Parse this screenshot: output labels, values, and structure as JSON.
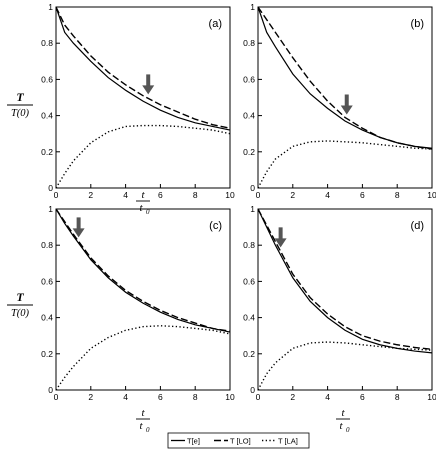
{
  "chart_data": [
    {
      "type": "line",
      "panel_label": "(a)",
      "xlim": [
        0,
        10
      ],
      "ylim": [
        0,
        1
      ],
      "xticks": [
        "0",
        "2",
        "4",
        "6",
        "8",
        "10"
      ],
      "yticks": [
        "0",
        "0.2",
        "0.4",
        "0.6",
        "0.8",
        "1"
      ],
      "arrow_x": 5.3,
      "series": [
        {
          "name": "T[e]",
          "style": "solid",
          "x": [
            0,
            0.5,
            1,
            2,
            3,
            4,
            5,
            6,
            7,
            8,
            9,
            10
          ],
          "y": [
            1.0,
            0.86,
            0.8,
            0.7,
            0.61,
            0.54,
            0.48,
            0.43,
            0.39,
            0.36,
            0.34,
            0.32
          ]
        },
        {
          "name": "T [LO]",
          "style": "dashed",
          "x": [
            0,
            0.5,
            1,
            2,
            3,
            4,
            5,
            6,
            7,
            8,
            9,
            10
          ],
          "y": [
            1.0,
            0.9,
            0.84,
            0.73,
            0.64,
            0.57,
            0.51,
            0.46,
            0.42,
            0.38,
            0.35,
            0.33
          ]
        },
        {
          "name": "T [LA]",
          "style": "dotted",
          "x": [
            0,
            0.5,
            1,
            2,
            3,
            4,
            5,
            6,
            7,
            8,
            9,
            10
          ],
          "y": [
            0.0,
            0.08,
            0.15,
            0.25,
            0.31,
            0.34,
            0.345,
            0.345,
            0.34,
            0.33,
            0.32,
            0.3
          ]
        }
      ]
    },
    {
      "type": "line",
      "panel_label": "(b)",
      "xlim": [
        0,
        10
      ],
      "ylim": [
        0,
        1
      ],
      "xticks": [
        "0",
        "2",
        "4",
        "6",
        "8",
        "10"
      ],
      "yticks": [
        "0",
        "0.2",
        "0.4",
        "0.6",
        "0.8",
        "1"
      ],
      "arrow_x": 5.1,
      "series": [
        {
          "name": "T[e]",
          "style": "solid",
          "x": [
            0,
            0.5,
            1,
            2,
            3,
            4,
            5,
            6,
            7,
            8,
            9,
            10
          ],
          "y": [
            1.0,
            0.86,
            0.78,
            0.63,
            0.52,
            0.44,
            0.37,
            0.32,
            0.28,
            0.25,
            0.23,
            0.22
          ]
        },
        {
          "name": "T [LO]",
          "style": "dashed",
          "x": [
            0,
            0.5,
            1,
            2,
            3,
            4,
            5,
            6,
            7,
            8,
            9,
            10
          ],
          "y": [
            1.0,
            0.93,
            0.86,
            0.72,
            0.59,
            0.48,
            0.39,
            0.33,
            0.28,
            0.25,
            0.23,
            0.215
          ]
        },
        {
          "name": "T [LA]",
          "style": "dotted",
          "x": [
            0,
            0.5,
            1,
            2,
            3,
            4,
            5,
            6,
            7,
            8,
            9,
            10
          ],
          "y": [
            0.0,
            0.09,
            0.16,
            0.23,
            0.255,
            0.26,
            0.255,
            0.25,
            0.24,
            0.23,
            0.22,
            0.215
          ]
        }
      ]
    },
    {
      "type": "line",
      "panel_label": "(c)",
      "xlim": [
        0,
        10
      ],
      "ylim": [
        0,
        1
      ],
      "xticks": [
        "0",
        "2",
        "4",
        "6",
        "8",
        "10"
      ],
      "yticks": [
        "0",
        "0.2",
        "0.4",
        "0.6",
        "0.8",
        "1"
      ],
      "arrow_x": 1.3,
      "series": [
        {
          "name": "T[e]",
          "style": "solid",
          "x": [
            0,
            0.5,
            1,
            2,
            3,
            4,
            5,
            6,
            7,
            8,
            9,
            10
          ],
          "y": [
            1.0,
            0.92,
            0.85,
            0.72,
            0.62,
            0.54,
            0.48,
            0.43,
            0.39,
            0.36,
            0.34,
            0.32
          ]
        },
        {
          "name": "T [LO]",
          "style": "dashed",
          "x": [
            0,
            0.5,
            1,
            2,
            3,
            4,
            5,
            6,
            7,
            8,
            9,
            10
          ],
          "y": [
            1.0,
            0.93,
            0.86,
            0.73,
            0.63,
            0.55,
            0.49,
            0.44,
            0.4,
            0.37,
            0.34,
            0.325
          ]
        },
        {
          "name": "T [LA]",
          "style": "dotted",
          "x": [
            0,
            0.5,
            1,
            2,
            3,
            4,
            5,
            6,
            7,
            8,
            9,
            10
          ],
          "y": [
            0.0,
            0.07,
            0.13,
            0.23,
            0.29,
            0.33,
            0.35,
            0.355,
            0.35,
            0.34,
            0.33,
            0.31
          ]
        }
      ]
    },
    {
      "type": "line",
      "panel_label": "(d)",
      "xlim": [
        0,
        10
      ],
      "ylim": [
        0,
        1
      ],
      "xticks": [
        "0",
        "2",
        "4",
        "6",
        "8",
        "10"
      ],
      "yticks": [
        "0",
        "0.2",
        "0.4",
        "0.6",
        "0.8",
        "1"
      ],
      "arrow_x": 1.3,
      "series": [
        {
          "name": "T[e]",
          "style": "solid",
          "x": [
            0,
            0.5,
            1,
            2,
            3,
            4,
            5,
            6,
            7,
            8,
            9,
            10
          ],
          "y": [
            1.0,
            0.9,
            0.8,
            0.62,
            0.49,
            0.4,
            0.33,
            0.28,
            0.25,
            0.23,
            0.215,
            0.205
          ]
        },
        {
          "name": "T [LO]",
          "style": "dashed",
          "x": [
            0,
            0.5,
            1,
            2,
            3,
            4,
            5,
            6,
            7,
            8,
            9,
            10
          ],
          "y": [
            1.0,
            0.91,
            0.82,
            0.64,
            0.51,
            0.42,
            0.35,
            0.3,
            0.27,
            0.25,
            0.235,
            0.225
          ]
        },
        {
          "name": "T [LA]",
          "style": "dotted",
          "x": [
            0,
            0.5,
            1,
            2,
            3,
            4,
            5,
            6,
            7,
            8,
            9,
            10
          ],
          "y": [
            0.0,
            0.09,
            0.15,
            0.23,
            0.26,
            0.265,
            0.26,
            0.25,
            0.24,
            0.23,
            0.225,
            0.22
          ]
        }
      ]
    }
  ],
  "labels": {
    "ylabel_num": "T",
    "ylabel_den": "T(0)",
    "xlabel_num": "t",
    "xlabel_den": "t",
    "xlabel_den_sub": "0"
  },
  "legend": {
    "items": [
      "T[e]",
      "T [LO]",
      "T [LA]"
    ],
    "placement": "bottom-center"
  }
}
